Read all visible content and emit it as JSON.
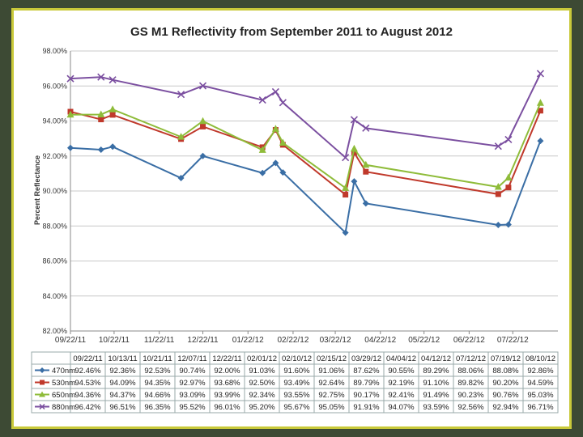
{
  "chart_data": {
    "type": "line",
    "title": "GS M1 Reflectivity from September 2011 to August 2012",
    "ylabel": "Percent Reflectance",
    "xlabel": "",
    "ylim": [
      82,
      98
    ],
    "y_ticks": [
      "82.00%",
      "84.00%",
      "86.00%",
      "88.00%",
      "90.00%",
      "92.00%",
      "94.00%",
      "96.00%",
      "98.00%"
    ],
    "x_ticks": [
      "09/22/11",
      "10/22/11",
      "11/22/11",
      "12/22/11",
      "01/22/12",
      "02/22/12",
      "03/22/12",
      "04/22/12",
      "05/22/12",
      "06/22/12",
      "07/22/12"
    ],
    "grid": "horizontal",
    "legend": "data table below plot",
    "table_dates": [
      "09/22/11",
      "10/13/11",
      "10/21/11",
      "12/07/11",
      "12/22/11",
      "02/01/12",
      "02/10/12",
      "02/15/12",
      "03/29/12",
      "04/04/12",
      "04/12/12",
      "07/12/12",
      "07/19/12",
      "08/10/12"
    ],
    "x": [
      "2011-09-22",
      "2011-10-13",
      "2011-10-21",
      "2011-12-07",
      "2011-12-22",
      "2012-02-01",
      "2012-02-10",
      "2012-02-15",
      "2012-03-29",
      "2012-04-04",
      "2012-04-12",
      "2012-07-12",
      "2012-07-19",
      "2012-08-10"
    ],
    "series": [
      {
        "name": "470nm",
        "color": "#3a6ea5",
        "marker": "diamond",
        "values": [
          92.46,
          92.36,
          92.53,
          90.74,
          92.0,
          91.03,
          91.6,
          91.06,
          87.62,
          90.55,
          89.29,
          88.06,
          88.08,
          92.86
        ],
        "labels": [
          "92.46%",
          "92.36%",
          "92.53%",
          "90.74%",
          "92.00%",
          "91.03%",
          "91.60%",
          "91.06%",
          "87.62%",
          "90.55%",
          "89.29%",
          "88.06%",
          "88.08%",
          "92.86%"
        ]
      },
      {
        "name": "530nm",
        "color": "#c0392b",
        "marker": "square",
        "values": [
          94.53,
          94.09,
          94.35,
          92.97,
          93.68,
          92.5,
          93.49,
          92.64,
          89.79,
          92.19,
          91.1,
          89.82,
          90.2,
          94.59
        ],
        "labels": [
          "94.53%",
          "94.09%",
          "94.35%",
          "92.97%",
          "93.68%",
          "92.50%",
          "93.49%",
          "92.64%",
          "89.79%",
          "92.19%",
          "91.10%",
          "89.82%",
          "90.20%",
          "94.59%"
        ]
      },
      {
        "name": "650nm",
        "color": "#8fbc3a",
        "marker": "triangle",
        "values": [
          94.36,
          94.37,
          94.66,
          93.09,
          93.99,
          92.34,
          93.55,
          92.75,
          90.17,
          92.41,
          91.49,
          90.23,
          90.76,
          95.03
        ],
        "labels": [
          "94.36%",
          "94.37%",
          "94.66%",
          "93.09%",
          "93.99%",
          "92.34%",
          "93.55%",
          "92.75%",
          "90.17%",
          "92.41%",
          "91.49%",
          "90.23%",
          "90.76%",
          "95.03%"
        ]
      },
      {
        "name": "880nm",
        "color": "#7b4fa0",
        "marker": "x",
        "values": [
          96.42,
          96.51,
          96.35,
          95.52,
          96.01,
          95.2,
          95.67,
          95.05,
          91.91,
          94.07,
          93.59,
          92.56,
          92.94,
          96.71
        ],
        "labels": [
          "96.42%",
          "96.51%",
          "96.35%",
          "95.52%",
          "96.01%",
          "95.20%",
          "95.67%",
          "95.05%",
          "91.91%",
          "94.07%",
          "93.59%",
          "92.56%",
          "92.94%",
          "96.71%"
        ]
      }
    ]
  }
}
